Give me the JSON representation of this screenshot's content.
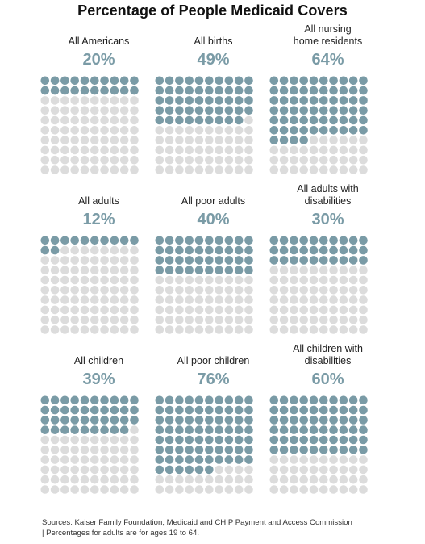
{
  "title": "Percentage of People Medicaid Covers",
  "colors": {
    "filled": "#7a9ba6",
    "empty": "#dcdcdc",
    "percent_text": "#7a9ba6"
  },
  "chart_data": {
    "type": "waffle",
    "title": "Percentage of People Medicaid Covers",
    "grid": {
      "rows": 10,
      "cols": 10
    },
    "panels": [
      {
        "label": [
          "All Americans"
        ],
        "value": 20,
        "value_label": "20%"
      },
      {
        "label": [
          "All births"
        ],
        "value": 49,
        "value_label": "49%"
      },
      {
        "label": [
          "All nursing",
          "home residents"
        ],
        "value": 64,
        "value_label": "64%"
      },
      {
        "label": [
          "All adults"
        ],
        "value": 12,
        "value_label": "12%"
      },
      {
        "label": [
          "All poor adults"
        ],
        "value": 40,
        "value_label": "40%"
      },
      {
        "label": [
          "All adults with",
          "disabilities"
        ],
        "value": 30,
        "value_label": "30%"
      },
      {
        "label": [
          "All children"
        ],
        "value": 39,
        "value_label": "39%"
      },
      {
        "label": [
          "All poor children"
        ],
        "value": 76,
        "value_label": "76%"
      },
      {
        "label": [
          "All children with",
          "disabilities"
        ],
        "value": 60,
        "value_label": "60%"
      }
    ]
  },
  "footer": {
    "line1": "Sources: Kaiser Family Foundation; Medicaid and CHIP Payment and Access Commission",
    "line2": "| Percentages for adults are for ages 19 to 64."
  }
}
